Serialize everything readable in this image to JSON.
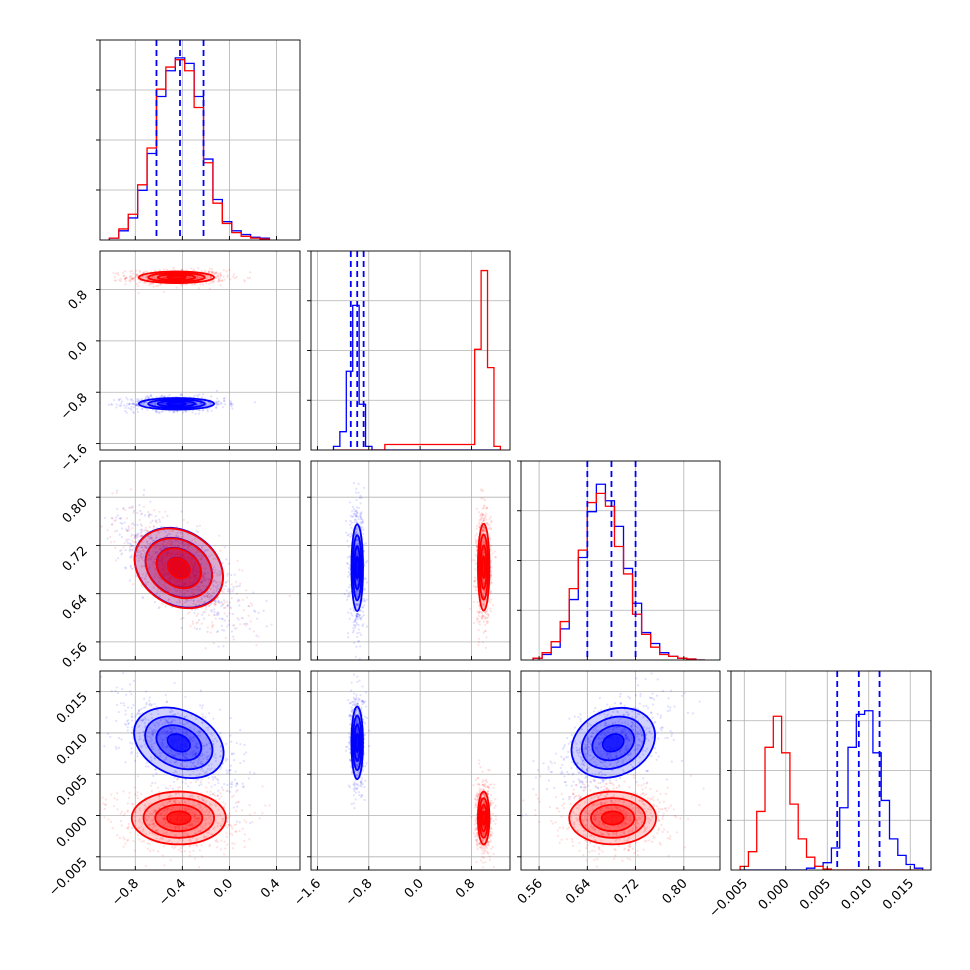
{
  "figure": {
    "series": [
      {
        "color": "#0000ff"
      },
      {
        "color": "#ff0000"
      }
    ],
    "quantile_line_color": "#0000ff",
    "grid": true
  },
  "chart_data": [
    {
      "type": "histogram",
      "panel": "p1",
      "xlim": [
        -1.1,
        0.6
      ],
      "hist": {
        "edges": [
          -1.02,
          -0.94,
          -0.86,
          -0.78,
          -0.7,
          -0.62,
          -0.54,
          -0.46,
          -0.38,
          -0.3,
          -0.22,
          -0.14,
          -0.06,
          0.02,
          0.1,
          0.18,
          0.26,
          0.34
        ],
        "blue": [
          0.01,
          0.05,
          0.12,
          0.27,
          0.47,
          0.78,
          0.92,
          0.99,
          0.96,
          0.78,
          0.44,
          0.22,
          0.1,
          0.05,
          0.03,
          0.015,
          0.01
        ],
        "red": [
          0.01,
          0.06,
          0.14,
          0.3,
          0.5,
          0.82,
          0.94,
          0.98,
          0.92,
          0.72,
          0.42,
          0.2,
          0.09,
          0.04,
          0.02,
          0.01,
          0.005
        ]
      },
      "quantiles": [
        -0.62,
        -0.42,
        -0.22
      ]
    },
    {
      "type": "histogram",
      "panel": "p2",
      "xlim": [
        -1.7,
        1.4
      ],
      "hist": {
        "edges": [
          -1.35,
          -1.25,
          -1.15,
          -1.05,
          -0.95,
          -0.85,
          -0.75,
          -0.65,
          -0.55,
          0.85,
          0.95,
          1.05,
          1.15,
          1.25
        ],
        "blue": [
          0.02,
          0.1,
          0.43,
          0.79,
          0.25,
          0.02,
          0,
          0,
          0,
          0,
          0,
          0,
          0
        ],
        "red": [
          0,
          0,
          0,
          0,
          0,
          0,
          0,
          0,
          0.03,
          0.55,
          0.98,
          0.45,
          0.02
        ]
      },
      "quantiles": [
        -1.08,
        -0.98,
        -0.88
      ]
    },
    {
      "type": "histogram",
      "panel": "p3",
      "xlim": [
        0.53,
        0.86
      ],
      "hist": {
        "edges": [
          0.55,
          0.565,
          0.58,
          0.595,
          0.61,
          0.625,
          0.64,
          0.655,
          0.67,
          0.685,
          0.7,
          0.715,
          0.73,
          0.745,
          0.76,
          0.775,
          0.79,
          0.805,
          0.82,
          0.835
        ],
        "blue": [
          0.01,
          0.03,
          0.07,
          0.17,
          0.33,
          0.56,
          0.81,
          0.96,
          0.87,
          0.73,
          0.5,
          0.31,
          0.15,
          0.09,
          0.04,
          0.02,
          0.01,
          0.005,
          0
        ],
        "red": [
          0.01,
          0.04,
          0.1,
          0.21,
          0.39,
          0.6,
          0.86,
          0.91,
          0.84,
          0.62,
          0.47,
          0.25,
          0.14,
          0.07,
          0.03,
          0.02,
          0.01,
          0.005,
          0
        ]
      },
      "quantiles": [
        0.64,
        0.68,
        0.72
      ]
    },
    {
      "type": "histogram",
      "panel": "p4",
      "xlim": [
        -0.0066,
        0.0175
      ],
      "hist": {
        "edges": [
          -0.0055,
          -0.0045,
          -0.0035,
          -0.0025,
          -0.0015,
          -0.0005,
          0.0005,
          0.0015,
          0.0025,
          0.0035,
          0.0045,
          0.0055,
          0.0065,
          0.0075,
          0.0085,
          0.0095,
          0.0105,
          0.0115,
          0.0125,
          0.0135,
          0.0145,
          0.0155,
          0.0165
        ],
        "blue": [
          0,
          0,
          0,
          0,
          0,
          0,
          0,
          0,
          0.01,
          0.02,
          0.04,
          0.12,
          0.34,
          0.67,
          0.85,
          0.87,
          0.64,
          0.38,
          0.17,
          0.08,
          0.03,
          0.01
        ],
        "red": [
          0.02,
          0.1,
          0.32,
          0.67,
          0.84,
          0.64,
          0.36,
          0.17,
          0.07,
          0.02,
          0.005,
          0,
          0,
          0,
          0,
          0,
          0,
          0,
          0,
          0,
          0,
          0
        ]
      },
      "quantiles": [
        0.0062,
        0.0088,
        0.0113
      ]
    },
    {
      "type": "contour-scatter",
      "panel": "p21",
      "xlim": [
        -1.1,
        0.6
      ],
      "ylim": [
        -1.7,
        1.4
      ],
      "blobs": [
        {
          "series": "red",
          "cx": -0.45,
          "cy": 0.99,
          "sx": 0.16,
          "sy": 0.045,
          "rho": 0
        },
        {
          "series": "blue",
          "cx": -0.45,
          "cy": -0.98,
          "sx": 0.16,
          "sy": 0.045,
          "rho": 0
        }
      ]
    },
    {
      "type": "contour-scatter",
      "panel": "p31",
      "xlim": [
        -1.1,
        0.6
      ],
      "ylim": [
        0.53,
        0.86
      ],
      "blobs": [
        {
          "series": "blue",
          "cx": -0.43,
          "cy": 0.683,
          "sx": 0.2,
          "sy": 0.036,
          "rho": -0.7
        },
        {
          "series": "red",
          "cx": -0.43,
          "cy": 0.682,
          "sx": 0.2,
          "sy": 0.036,
          "rho": -0.7
        }
      ]
    },
    {
      "type": "contour-scatter",
      "panel": "p32",
      "xlim": [
        -1.7,
        1.4
      ],
      "ylim": [
        0.53,
        0.86
      ],
      "blobs": [
        {
          "series": "blue",
          "cx": -0.98,
          "cy": 0.683,
          "sx": 0.045,
          "sy": 0.036,
          "rho": 0
        },
        {
          "series": "red",
          "cx": 0.99,
          "cy": 0.684,
          "sx": 0.045,
          "sy": 0.036,
          "rho": 0
        }
      ]
    },
    {
      "type": "contour-scatter",
      "panel": "p41",
      "xlim": [
        -1.1,
        0.6
      ],
      "ylim": [
        -0.0066,
        0.0175
      ],
      "blobs": [
        {
          "series": "blue",
          "cx": -0.43,
          "cy": 0.0088,
          "sx": 0.2,
          "sy": 0.0022,
          "rho": -0.6
        },
        {
          "series": "red",
          "cx": -0.43,
          "cy": -0.0003,
          "sx": 0.2,
          "sy": 0.0016,
          "rho": 0
        }
      ]
    },
    {
      "type": "contour-scatter",
      "panel": "p42",
      "xlim": [
        -1.7,
        1.4
      ],
      "ylim": [
        -0.0066,
        0.0175
      ],
      "blobs": [
        {
          "series": "blue",
          "cx": -0.98,
          "cy": 0.0088,
          "sx": 0.045,
          "sy": 0.0022,
          "rho": 0
        },
        {
          "series": "red",
          "cx": 0.99,
          "cy": -0.0003,
          "sx": 0.045,
          "sy": 0.0016,
          "rho": 0
        }
      ]
    },
    {
      "type": "contour-scatter",
      "panel": "p43",
      "xlim": [
        0.53,
        0.86
      ],
      "ylim": [
        -0.0066,
        0.0175
      ],
      "blobs": [
        {
          "series": "blue",
          "cx": 0.683,
          "cy": 0.0088,
          "sx": 0.036,
          "sy": 0.0022,
          "rho": 0.55
        },
        {
          "series": "red",
          "cx": 0.682,
          "cy": -0.0003,
          "sx": 0.036,
          "sy": 0.0016,
          "rho": 0
        }
      ]
    }
  ],
  "axes": {
    "x1": {
      "ticks": [
        {
          "v": -0.8,
          "label": "−0.8"
        },
        {
          "v": -0.4,
          "label": "−0.4"
        },
        {
          "v": 0.0,
          "label": "0.0"
        },
        {
          "v": 0.4,
          "label": "0.4"
        }
      ]
    },
    "x2": {
      "ticks": [
        {
          "v": -1.6,
          "label": "−1.6"
        },
        {
          "v": -0.8,
          "label": "−0.8"
        },
        {
          "v": 0.0,
          "label": "0.0"
        },
        {
          "v": 0.8,
          "label": "0.8"
        }
      ]
    },
    "x3": {
      "ticks": [
        {
          "v": 0.56,
          "label": "0.56"
        },
        {
          "v": 0.64,
          "label": "0.64"
        },
        {
          "v": 0.72,
          "label": "0.72"
        },
        {
          "v": 0.8,
          "label": "0.80"
        }
      ]
    },
    "x4": {
      "ticks": [
        {
          "v": -0.005,
          "label": "−0.005"
        },
        {
          "v": 0.0,
          "label": "0.000"
        },
        {
          "v": 0.005,
          "label": "0.005"
        },
        {
          "v": 0.01,
          "label": "0.010"
        },
        {
          "v": 0.015,
          "label": "0.015"
        }
      ]
    },
    "y2": {
      "ticks": [
        {
          "v": 0.8,
          "label": "0.8"
        },
        {
          "v": 0.0,
          "label": "0.0"
        },
        {
          "v": -0.8,
          "label": "−0.8"
        },
        {
          "v": -1.6,
          "label": "−1.6"
        }
      ]
    },
    "y3": {
      "ticks": [
        {
          "v": 0.8,
          "label": "0.80"
        },
        {
          "v": 0.72,
          "label": "0.72"
        },
        {
          "v": 0.64,
          "label": "0.64"
        },
        {
          "v": 0.56,
          "label": "0.56"
        }
      ]
    },
    "y4": {
      "ticks": [
        {
          "v": 0.015,
          "label": "0.015"
        },
        {
          "v": 0.01,
          "label": "0.010"
        },
        {
          "v": 0.005,
          "label": "0.005"
        },
        {
          "v": 0.0,
          "label": "0.000"
        },
        {
          "v": -0.005,
          "label": "−0.005"
        }
      ]
    }
  }
}
